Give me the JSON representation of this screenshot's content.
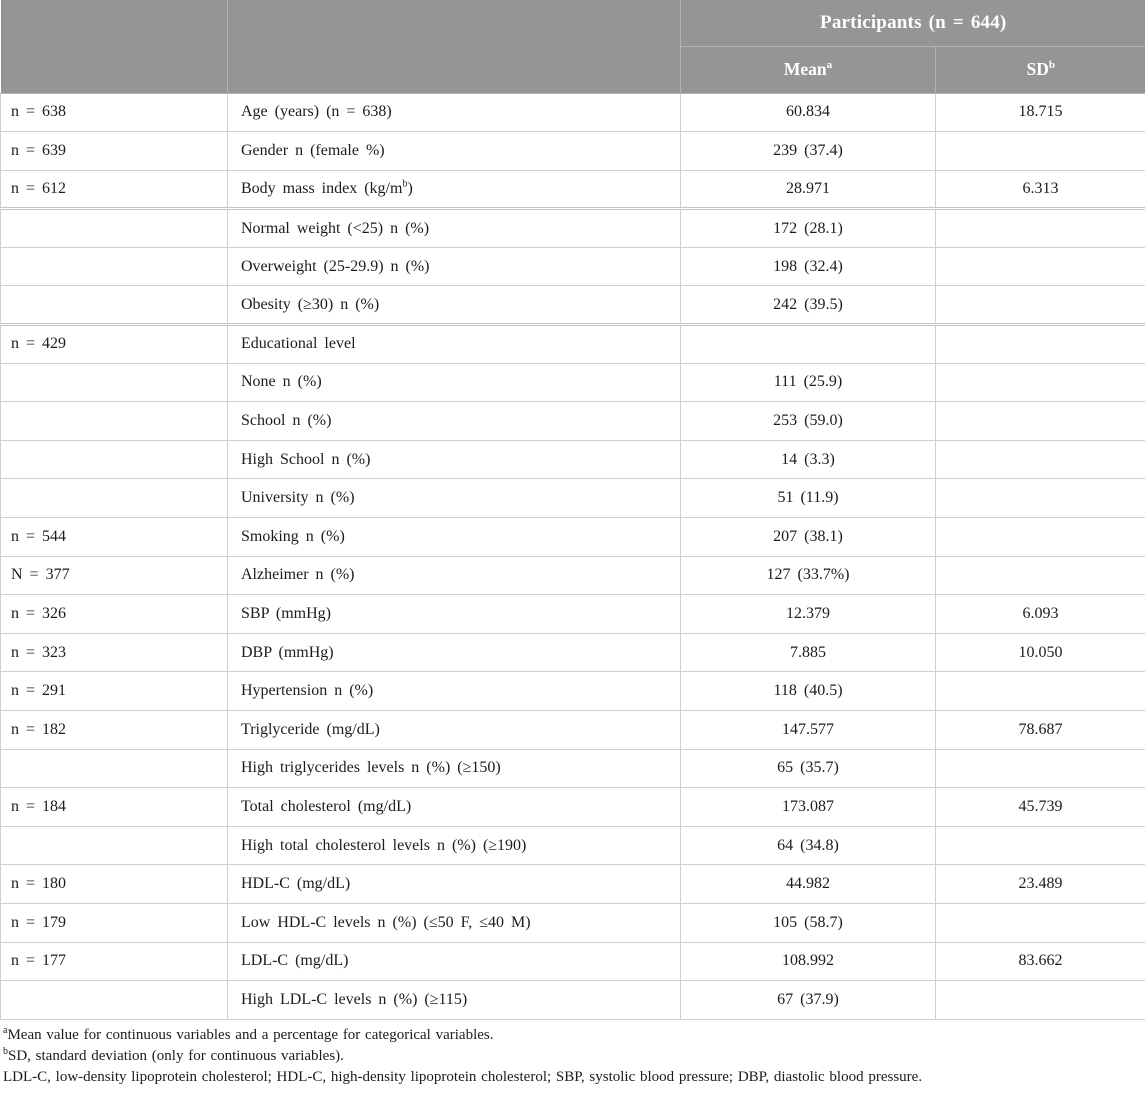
{
  "table": {
    "header": {
      "participants": "Participants (n = 644)",
      "mean": "Mean",
      "mean_sup": "a",
      "sd": "SD",
      "sd_sup": "b"
    },
    "rows": [
      {
        "n": "n = 638",
        "label": "Age (years) (n = 638)",
        "label_sup": "",
        "label_post": "",
        "mean": "60.834",
        "sd": "18.715"
      },
      {
        "n": "n = 639",
        "label": "Gender n (female %)",
        "label_sup": "",
        "label_post": "",
        "mean": "239 (37.4)",
        "sd": ""
      },
      {
        "n": "n = 612",
        "label": "Body mass index (kg/m",
        "label_sup": "b",
        "label_post": ")",
        "mean": "28.971",
        "sd": "6.313"
      },
      {
        "n": "",
        "label": "Normal weight (<25) n (%)",
        "label_sup": "",
        "label_post": "",
        "mean": "172 (28.1)",
        "sd": "",
        "sep": true
      },
      {
        "n": "",
        "label": "Overweight (25-29.9) n (%)",
        "label_sup": "",
        "label_post": "",
        "mean": "198 (32.4)",
        "sd": ""
      },
      {
        "n": "",
        "label": "Obesity (≥30) n (%)",
        "label_sup": "",
        "label_post": "",
        "mean": "242 (39.5)",
        "sd": ""
      },
      {
        "n": "n = 429",
        "label": "Educational level",
        "label_sup": "",
        "label_post": "",
        "mean": "",
        "sd": "",
        "sep": true
      },
      {
        "n": "",
        "label": "None n (%)",
        "label_sup": "",
        "label_post": "",
        "mean": "111 (25.9)",
        "sd": ""
      },
      {
        "n": "",
        "label": "School n (%)",
        "label_sup": "",
        "label_post": "",
        "mean": "253 (59.0)",
        "sd": ""
      },
      {
        "n": "",
        "label": "High School n (%)",
        "label_sup": "",
        "label_post": "",
        "mean": "14 (3.3)",
        "sd": ""
      },
      {
        "n": "",
        "label": "University n (%)",
        "label_sup": "",
        "label_post": "",
        "mean": "51 (11.9)",
        "sd": ""
      },
      {
        "n": "n = 544",
        "label": "Smoking n (%)",
        "label_sup": "",
        "label_post": "",
        "mean": "207 (38.1)",
        "sd": ""
      },
      {
        "n": "N = 377",
        "label": "Alzheimer n (%)",
        "label_sup": "",
        "label_post": "",
        "mean": "127 (33.7%)",
        "sd": ""
      },
      {
        "n": "n = 326",
        "label": "SBP (mmHg)",
        "label_sup": "",
        "label_post": "",
        "mean": "12.379",
        "sd": "6.093"
      },
      {
        "n": "n = 323",
        "label": "DBP (mmHg)",
        "label_sup": "",
        "label_post": "",
        "mean": "7.885",
        "sd": "10.050"
      },
      {
        "n": "n = 291",
        "label": "Hypertension n (%)",
        "label_sup": "",
        "label_post": "",
        "mean": "118 (40.5)",
        "sd": ""
      },
      {
        "n": "n = 182",
        "label": "Triglyceride (mg/dL)",
        "label_sup": "",
        "label_post": "",
        "mean": "147.577",
        "sd": "78.687"
      },
      {
        "n": "",
        "label": "High triglycerides levels n (%) (≥150)",
        "label_sup": "",
        "label_post": "",
        "mean": "65 (35.7)",
        "sd": ""
      },
      {
        "n": "n = 184",
        "label": "Total cholesterol (mg/dL)",
        "label_sup": "",
        "label_post": "",
        "mean": "173.087",
        "sd": "45.739"
      },
      {
        "n": "",
        "label": "High total cholesterol levels n (%) (≥190)",
        "label_sup": "",
        "label_post": "",
        "mean": "64 (34.8)",
        "sd": ""
      },
      {
        "n": "n = 180",
        "label": "HDL-C (mg/dL)",
        "label_sup": "",
        "label_post": "",
        "mean": "44.982",
        "sd": "23.489"
      },
      {
        "n": "n = 179",
        "label": "Low HDL-C levels n (%) (≤50 F, ≤40 M)",
        "label_sup": "",
        "label_post": "",
        "mean": "105 (58.7)",
        "sd": ""
      },
      {
        "n": "n = 177",
        "label": "LDL-C (mg/dL)",
        "label_sup": "",
        "label_post": "",
        "mean": "108.992",
        "sd": "83.662"
      },
      {
        "n": "",
        "label": "High LDL-C levels n (%) (≥115)",
        "label_sup": "",
        "label_post": "",
        "mean": "67 (37.9)",
        "sd": ""
      }
    ],
    "footnotes": [
      {
        "sup": "a",
        "text": "Mean value for continuous variables and a percentage for categorical variables."
      },
      {
        "sup": "b",
        "text": "SD, standard deviation (only for continuous variables)."
      },
      {
        "sup": "",
        "text": "LDL-C, low-density lipoprotein cholesterol; HDL-C, high-density lipoprotein cholesterol; SBP, systolic blood pressure; DBP, diastolic blood pressure."
      }
    ],
    "colors": {
      "header_bg": "#959595",
      "header_text": "#ffffff",
      "row_border": "#cfcfcf",
      "body_text": "#1c1c1c"
    }
  }
}
